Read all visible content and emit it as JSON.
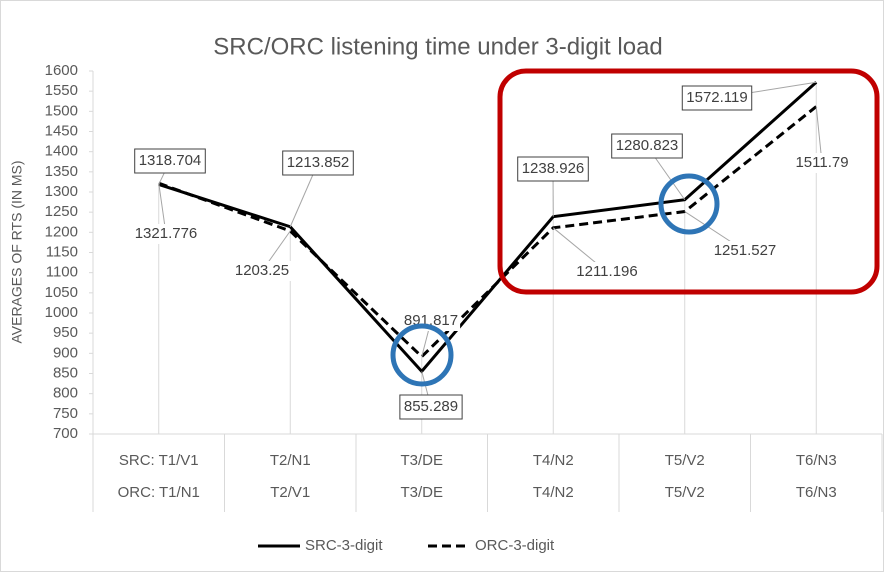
{
  "chart_data": {
    "type": "line",
    "title": "SRC/ORC listening time under 3-digit load",
    "y_label": "AVERAGES OF RTS (IN MS)",
    "categories": [
      [
        "SRC: T1/V1",
        "ORC: T1/N1"
      ],
      [
        "T2/N1",
        "T2/V1"
      ],
      [
        "T3/DE",
        "T3/DE"
      ],
      [
        "T4/N2",
        "T4/N2"
      ],
      [
        "T5/V2",
        "T5/V2"
      ],
      [
        "T6/N3",
        "T6/N3"
      ]
    ],
    "series": [
      {
        "name": "SRC-3-digit",
        "color": "#000000",
        "dash": "solid",
        "values": [
          1318.704,
          1213.852,
          855.289,
          1238.926,
          1280.823,
          1572.119
        ]
      },
      {
        "name": "ORC-3-digit",
        "color": "#000000",
        "dash": "dashed",
        "values": [
          1321.776,
          1203.25,
          891.817,
          1211.196,
          1251.527,
          1511.79
        ]
      }
    ],
    "ylim": [
      700,
      1600
    ],
    "yticks": [
      700,
      750,
      800,
      850,
      900,
      950,
      1000,
      1050,
      1100,
      1150,
      1200,
      1250,
      1300,
      1350,
      1400,
      1450,
      1500,
      1550,
      1600
    ],
    "legend": "bottom"
  }
}
